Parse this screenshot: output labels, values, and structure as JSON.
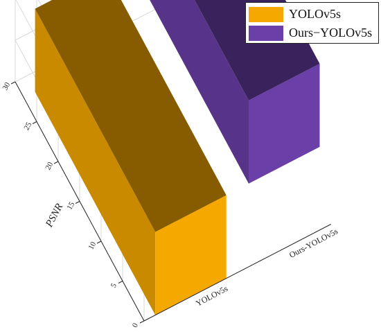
{
  "chart_data": {
    "type": "bar3d",
    "categories": [
      "YOLOv5s",
      "Ours-YOLOv5s"
    ],
    "series": [
      {
        "name": "YOLOv5s",
        "color": "#F5A800",
        "values": [
          28,
          0
        ]
      },
      {
        "name": "Ours-YOLOv5s",
        "color": "#6A3FA8",
        "values": [
          0,
          28
        ]
      }
    ],
    "zlabel": "PSNR",
    "z_ticks": [
      "0",
      "5",
      "10",
      "15",
      "20",
      "25",
      "30"
    ],
    "zlim": [
      0,
      30
    ],
    "wall_ticks": [
      "1",
      "0",
      "-1"
    ],
    "legend_position": "top-right"
  },
  "legend": {
    "items": [
      {
        "label": "YOLOv5s",
        "color": "#F5A800"
      },
      {
        "label": "Ours−YOLOv5s",
        "color": "#6A3FA8"
      }
    ]
  }
}
